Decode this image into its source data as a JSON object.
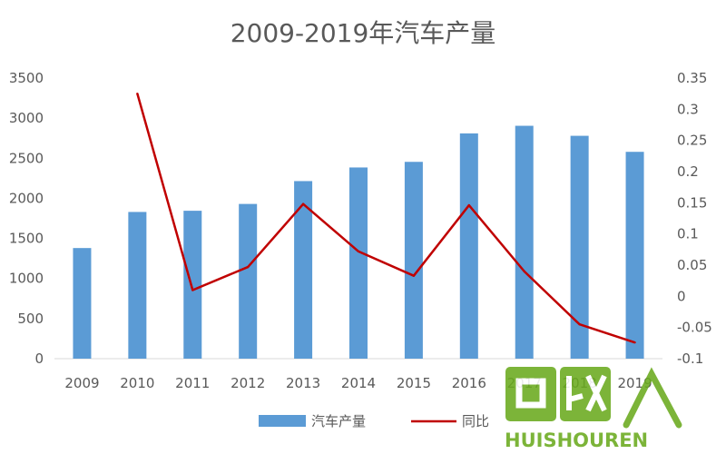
{
  "chart_data": {
    "type": "bar",
    "title": "2009-2019年汽车产量",
    "categories": [
      "2009",
      "2010",
      "2011",
      "2012",
      "2013",
      "2014",
      "2015",
      "2016",
      "2017",
      "2018",
      "2019"
    ],
    "series": [
      {
        "name": "汽车产量",
        "type": "bar",
        "axis": "left",
        "color": "#5b9bd5",
        "values": [
          1380,
          1830,
          1845,
          1930,
          2215,
          2385,
          2455,
          2810,
          2905,
          2780,
          2580
        ]
      },
      {
        "name": "同比",
        "type": "line",
        "axis": "right",
        "color": "#c00000",
        "values": [
          null,
          0.325,
          0.01,
          0.047,
          0.148,
          0.072,
          0.033,
          0.146,
          0.04,
          -0.045,
          -0.074
        ]
      }
    ],
    "ylim": [
      0,
      3500
    ],
    "y_ticks": [
      "0",
      "500",
      "1000",
      "1500",
      "2000",
      "2500",
      "3000",
      "3500"
    ],
    "y2lim": [
      -0.1,
      0.35
    ],
    "y2_ticks": [
      "-0.1",
      "-0.05",
      "0",
      "0.05",
      "0.1",
      "0.15",
      "0.2",
      "0.25",
      "0.3",
      "0.35"
    ],
    "x_tick_labels": [
      "2009",
      "2010",
      "2011",
      "2012",
      "2013",
      "2014",
      "2015",
      "2016",
      "2017",
      "2018",
      "2019"
    ],
    "legend": {
      "position": "bottom",
      "labels": [
        "汽车产量",
        "同比"
      ]
    },
    "grid": false
  },
  "watermark": {
    "logo_text": "回收",
    "brand_text": "HUISHOUREN",
    "color": "#6aaa1e"
  }
}
